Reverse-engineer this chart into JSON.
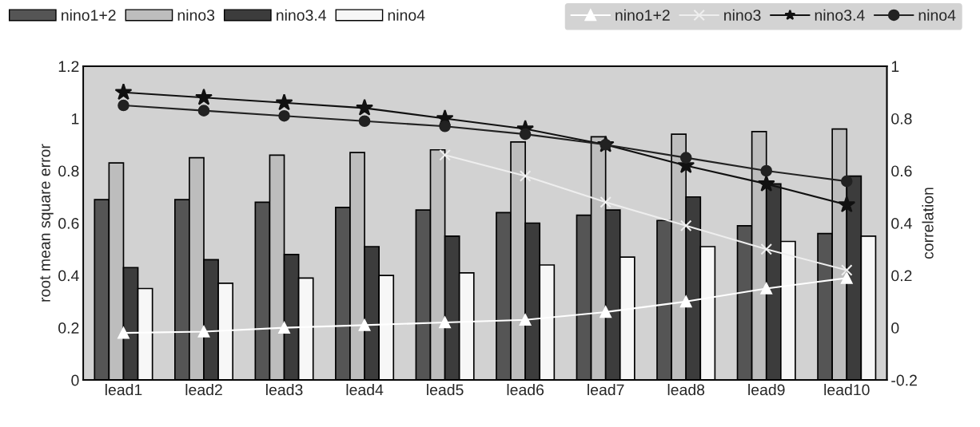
{
  "chart_data": {
    "type": "bar",
    "categories": [
      "lead1",
      "lead2",
      "lead3",
      "lead4",
      "lead5",
      "lead6",
      "lead7",
      "lead8",
      "lead9",
      "lead10"
    ],
    "ylabel": "root mean square error",
    "y2label": "correlation",
    "ylim": [
      0,
      1.2
    ],
    "yticks": [
      0,
      0.2,
      0.4,
      0.6,
      0.8,
      1,
      1.2
    ],
    "y2lim": [
      -0.2,
      1
    ],
    "y2ticks": [
      -0.2,
      0,
      0.2,
      0.4,
      0.6,
      0.8,
      1
    ],
    "legend": "top",
    "grid": false,
    "series": [
      {
        "name": "nino1+2",
        "color": "#555555",
        "values": [
          0.69,
          0.69,
          0.68,
          0.66,
          0.65,
          0.64,
          0.63,
          0.61,
          0.59,
          0.56
        ]
      },
      {
        "name": "nino3",
        "color": "#bdbdbd",
        "values": [
          0.83,
          0.85,
          0.86,
          0.87,
          0.88,
          0.91,
          0.93,
          0.94,
          0.95,
          0.96
        ]
      },
      {
        "name": "nino3.4",
        "color": "#3c3c3c",
        "values": [
          0.43,
          0.46,
          0.48,
          0.51,
          0.55,
          0.6,
          0.65,
          0.7,
          0.75,
          0.78
        ]
      },
      {
        "name": "nino4",
        "color": "#f7f7f7",
        "values": [
          0.35,
          0.37,
          0.39,
          0.4,
          0.41,
          0.44,
          0.47,
          0.51,
          0.53,
          0.55
        ]
      },
      {
        "name": "nino1+2",
        "type": "line",
        "axis": "y2",
        "marker": "triangle",
        "color": "#ffffff",
        "values": [
          -0.02,
          -0.015,
          0.0,
          0.01,
          0.02,
          0.03,
          0.06,
          0.1,
          0.15,
          0.19
        ]
      },
      {
        "name": "nino3",
        "type": "line",
        "axis": "y2",
        "marker": "cross",
        "color": "#eeeeee",
        "values": [
          null,
          null,
          null,
          null,
          0.66,
          0.58,
          0.48,
          0.39,
          0.3,
          0.22
        ]
      },
      {
        "name": "nino3.4",
        "type": "line",
        "axis": "y2",
        "marker": "star",
        "color": "#111111",
        "values": [
          0.9,
          0.88,
          0.86,
          0.84,
          0.8,
          0.76,
          0.7,
          0.62,
          0.55,
          0.47
        ]
      },
      {
        "name": "nino4",
        "type": "line",
        "axis": "y2",
        "marker": "circle",
        "color": "#222222",
        "values": [
          0.85,
          0.83,
          0.81,
          0.79,
          0.77,
          0.74,
          0.7,
          0.65,
          0.6,
          0.56
        ]
      }
    ]
  }
}
